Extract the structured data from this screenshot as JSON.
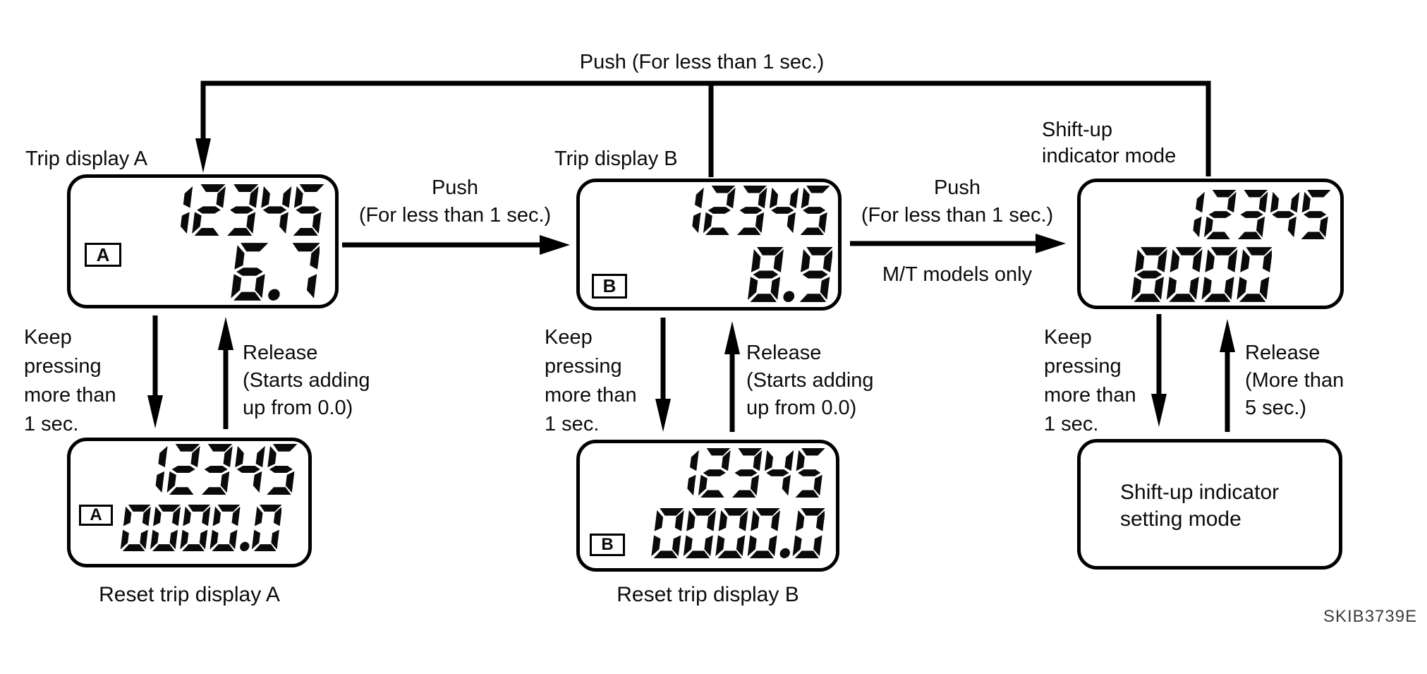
{
  "diagram": {
    "top_loop_label": "Push (For less than 1 sec.)",
    "watermark": "SKIB3739E"
  },
  "transitions": {
    "a_to_b": {
      "title": "Push",
      "detail": "(For less than 1 sec.)"
    },
    "b_to_shift": {
      "title": "Push",
      "detail": "(For less than 1 sec.)",
      "note": "M/T models only"
    },
    "hold": "Keep\npressing\nmore than\n1 sec.",
    "release_trip": "Release\n(Starts adding\nup from 0.0)",
    "release_shift": "Release\n(More than\n5 sec.)"
  },
  "nodes": {
    "trip_a": {
      "label": "Trip display A",
      "odometer": "12345",
      "badge": "A",
      "value": "6.7"
    },
    "trip_b": {
      "label": "Trip display B",
      "odometer": "12345",
      "badge": "B",
      "value": "8.9"
    },
    "shift_up": {
      "label": "Shift-up\nindicator mode",
      "odometer": "12345",
      "value": "8000"
    },
    "reset_a": {
      "caption": "Reset trip display A",
      "odometer": "12345",
      "badge": "A",
      "value": "0000.0"
    },
    "reset_b": {
      "caption": "Reset trip display B",
      "odometer": "12345",
      "badge": "B",
      "value": "0000.0"
    },
    "setting": {
      "text": "Shift-up indicator\nsetting mode"
    }
  }
}
